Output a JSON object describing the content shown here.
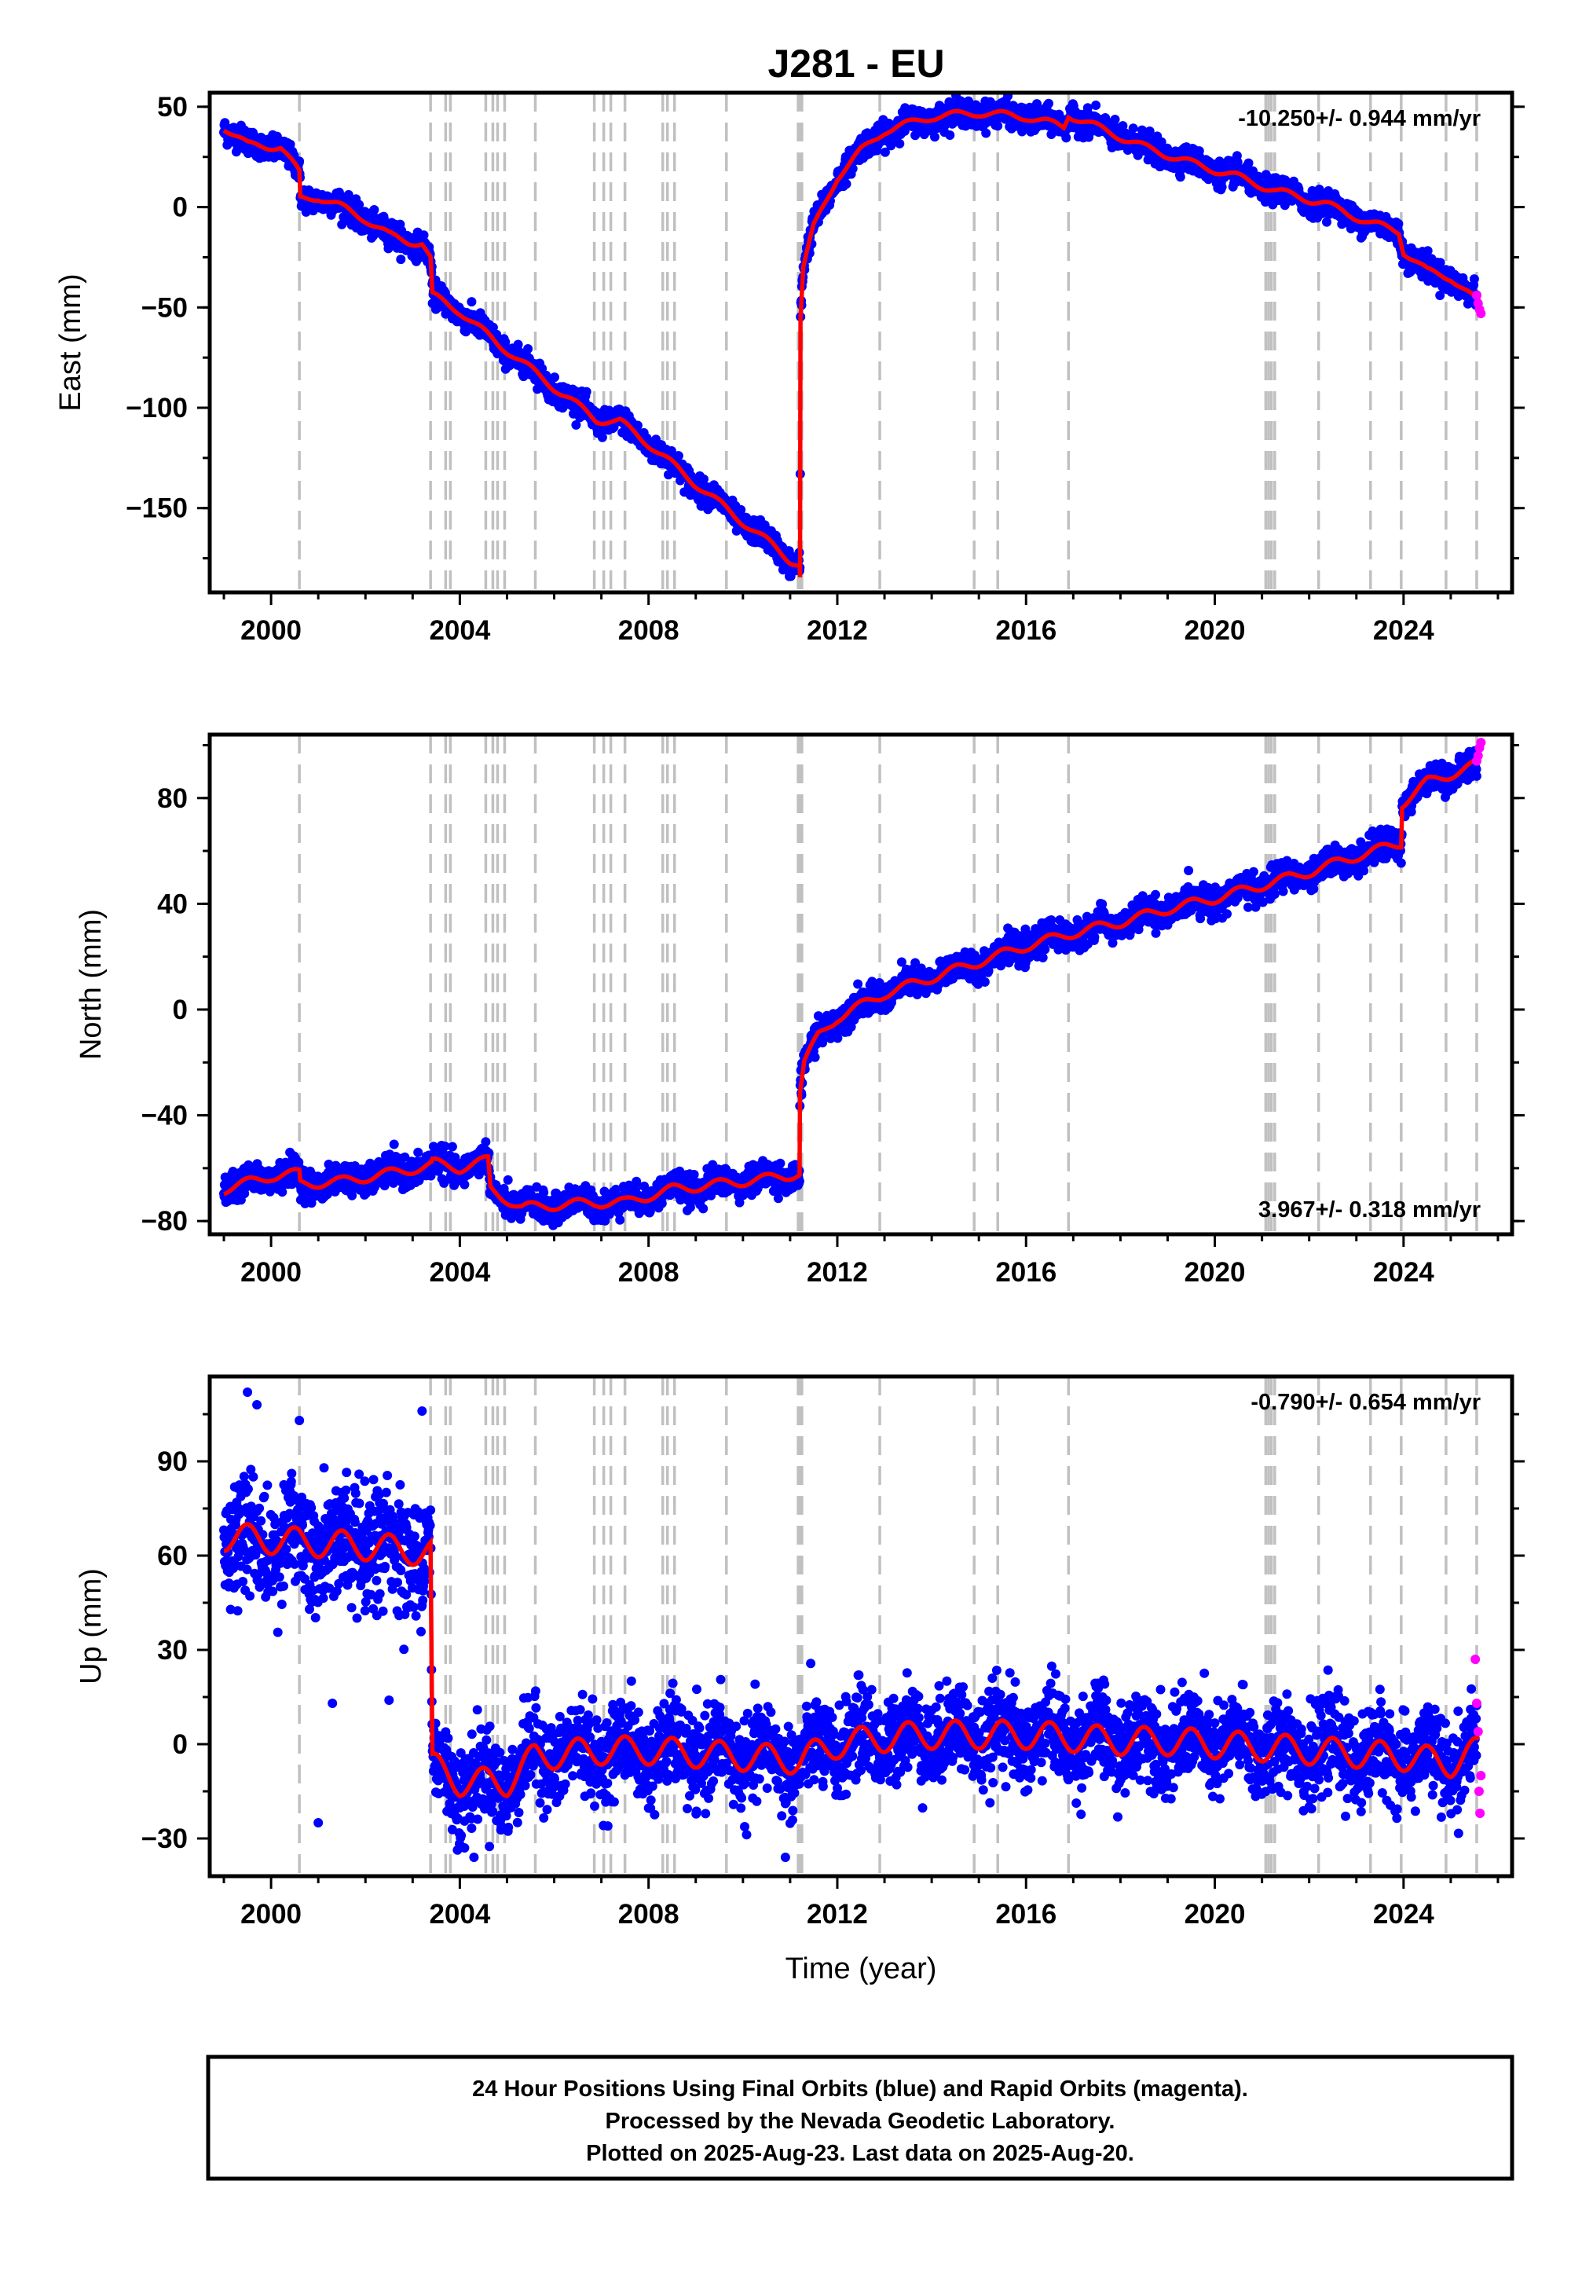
{
  "title": "J281 - EU",
  "colors": {
    "final_orbits": "#0000ff",
    "rapid_orbits": "#ff00ff",
    "model": "#ff0000",
    "event_lines": "#c0c0c0",
    "axes": "#000000"
  },
  "chart_data": [
    {
      "type": "scatter",
      "ylabel": "East (mm)",
      "xlabel": "",
      "xlim": [
        1998.7,
        2026.3
      ],
      "ylim": [
        -192,
        57
      ],
      "xticks": [
        2000,
        2004,
        2008,
        2012,
        2016,
        2020,
        2024
      ],
      "yticks": [
        50,
        0,
        -50,
        -100,
        -150
      ],
      "ytick_labels": [
        "50",
        "0",
        "−50",
        "−100",
        "−150"
      ],
      "rate_label": "-10.250+/- 0.944 mm/yr",
      "rate_position": "top-right",
      "model_knots": [
        [
          1999.0,
          40
        ],
        [
          1999.5,
          31
        ],
        [
          2000.2,
          30
        ],
        [
          2000.6,
          17
        ],
        [
          2000.62,
          4
        ],
        [
          2001.0,
          5
        ],
        [
          2001.5,
          0
        ],
        [
          2002.0,
          -6
        ],
        [
          2002.5,
          -14
        ],
        [
          2002.9,
          -17
        ],
        [
          2003.2,
          -18
        ],
        [
          2003.38,
          -26
        ],
        [
          2003.42,
          -44
        ],
        [
          2004.0,
          -52
        ],
        [
          2004.8,
          -68
        ],
        [
          2005.2,
          -75
        ],
        [
          2006.0,
          -90
        ],
        [
          2006.9,
          -106
        ],
        [
          2007.4,
          -107
        ],
        [
          2008.0,
          -118
        ],
        [
          2009.0,
          -138
        ],
        [
          2010.0,
          -157
        ],
        [
          2010.6,
          -168
        ],
        [
          2011.0,
          -176
        ],
        [
          2011.2,
          -178
        ],
        [
          2011.21,
          -184
        ],
        [
          2011.22,
          -55
        ],
        [
          2011.28,
          -30
        ],
        [
          2011.5,
          -10
        ],
        [
          2012.0,
          15
        ],
        [
          2012.5,
          28
        ],
        [
          2013.0,
          38
        ],
        [
          2014.0,
          45
        ],
        [
          2015.0,
          47
        ],
        [
          2016.0,
          45
        ],
        [
          2016.8,
          40
        ],
        [
          2016.9,
          46
        ],
        [
          2017.5,
          40
        ],
        [
          2018.5,
          30
        ],
        [
          2019.5,
          22
        ],
        [
          2020.5,
          15
        ],
        [
          2021.3,
          8
        ],
        [
          2022.3,
          2
        ],
        [
          2023.3,
          -8
        ],
        [
          2023.9,
          -12
        ],
        [
          2024.0,
          -22
        ],
        [
          2024.5,
          -32
        ],
        [
          2025.0,
          -35
        ],
        [
          2025.6,
          -48
        ]
      ],
      "scatter_sigma": 3,
      "rapid_points": [
        [
          2025.55,
          -44
        ],
        [
          2025.58,
          -48
        ],
        [
          2025.61,
          -51
        ],
        [
          2025.64,
          -53
        ]
      ]
    },
    {
      "type": "scatter",
      "ylabel": "North (mm)",
      "xlabel": "",
      "xlim": [
        1998.7,
        2026.3
      ],
      "ylim": [
        -85,
        104
      ],
      "xticks": [
        2000,
        2004,
        2008,
        2012,
        2016,
        2020,
        2024
      ],
      "yticks": [
        80,
        40,
        0,
        -40,
        -80
      ],
      "ytick_labels": [
        "80",
        "40",
        "0",
        "−40",
        "−80"
      ],
      "rate_label": "3.967+/- 0.318 mm/yr",
      "rate_position": "bottom-right",
      "model_knots": [
        [
          1999.0,
          -68
        ],
        [
          2000.0,
          -63
        ],
        [
          2000.6,
          -62
        ],
        [
          2000.62,
          -66
        ],
        [
          2001.5,
          -65
        ],
        [
          2002.5,
          -62
        ],
        [
          2003.4,
          -59
        ],
        [
          2003.42,
          -58
        ],
        [
          2004.0,
          -60
        ],
        [
          2004.6,
          -57
        ],
        [
          2004.65,
          -68
        ],
        [
          2005.3,
          -75
        ],
        [
          2006.0,
          -74
        ],
        [
          2006.9,
          -73
        ],
        [
          2007.5,
          -73
        ],
        [
          2008.5,
          -68
        ],
        [
          2009.5,
          -66
        ],
        [
          2010.5,
          -64
        ],
        [
          2011.2,
          -62
        ],
        [
          2011.21,
          -31
        ],
        [
          2011.3,
          -20
        ],
        [
          2011.6,
          -10
        ],
        [
          2012.0,
          -3
        ],
        [
          2013.0,
          6
        ],
        [
          2014.0,
          12
        ],
        [
          2015.0,
          18
        ],
        [
          2016.0,
          24
        ],
        [
          2017.0,
          29
        ],
        [
          2018.0,
          33
        ],
        [
          2019.0,
          38
        ],
        [
          2020.0,
          42
        ],
        [
          2021.0,
          47
        ],
        [
          2022.0,
          52
        ],
        [
          2023.0,
          58
        ],
        [
          2023.95,
          63
        ],
        [
          2023.97,
          78
        ],
        [
          2024.5,
          86
        ],
        [
          2025.0,
          89
        ],
        [
          2025.6,
          93
        ]
      ],
      "scatter_sigma": 2.6,
      "rapid_points": [
        [
          2025.55,
          94
        ],
        [
          2025.58,
          96
        ],
        [
          2025.61,
          99
        ],
        [
          2025.64,
          101
        ]
      ]
    },
    {
      "type": "scatter",
      "ylabel": "Up (mm)",
      "xlabel": "Time (year)",
      "xlim": [
        1998.7,
        2026.3
      ],
      "ylim": [
        -42,
        117
      ],
      "xticks": [
        2000,
        2004,
        2008,
        2012,
        2016,
        2020,
        2024
      ],
      "yticks": [
        90,
        60,
        30,
        0,
        -30
      ],
      "ytick_labels": [
        "90",
        "60",
        "30",
        "0",
        "−30"
      ],
      "rate_label": "-0.790+/- 0.654 mm/yr",
      "rate_position": "top-right",
      "model_knots": [
        [
          1999.0,
          66
        ],
        [
          2000.0,
          65
        ],
        [
          2001.0,
          64
        ],
        [
          2002.0,
          63
        ],
        [
          2003.38,
          61
        ],
        [
          2003.42,
          -7
        ],
        [
          2004.0,
          -12
        ],
        [
          2005.0,
          -12
        ],
        [
          2005.6,
          -4
        ],
        [
          2007.0,
          -2
        ],
        [
          2008.0,
          -2
        ],
        [
          2009.0,
          -3
        ],
        [
          2010.0,
          -4
        ],
        [
          2011.2,
          -5
        ],
        [
          2012.0,
          0
        ],
        [
          2013.0,
          2
        ],
        [
          2014.0,
          3
        ],
        [
          2015.0,
          3
        ],
        [
          2016.0,
          3
        ],
        [
          2017.0,
          2
        ],
        [
          2018.0,
          1
        ],
        [
          2019.0,
          1
        ],
        [
          2020.0,
          0
        ],
        [
          2021.0,
          -1
        ],
        [
          2022.0,
          -2
        ],
        [
          2023.0,
          -3
        ],
        [
          2024.0,
          -4
        ],
        [
          2025.0,
          -6
        ],
        [
          2025.6,
          -2
        ]
      ],
      "seasonal_amplitude": 4.5,
      "scatter_sigma": 7,
      "outliers": [
        [
          1999.5,
          112
        ],
        [
          1999.7,
          108
        ],
        [
          2000.6,
          103
        ],
        [
          2003.2,
          106
        ],
        [
          2001.0,
          -25
        ],
        [
          2004.1,
          -33
        ],
        [
          2004.3,
          -36
        ],
        [
          2010.9,
          -36
        ],
        [
          2001.3,
          13
        ],
        [
          2002.5,
          14
        ]
      ],
      "rapid_points": [
        [
          2025.52,
          27
        ],
        [
          2025.55,
          13
        ],
        [
          2025.58,
          4
        ],
        [
          2025.6,
          -15
        ],
        [
          2025.62,
          -22
        ],
        [
          2025.64,
          -10
        ]
      ]
    }
  ],
  "event_lines_x": [
    2000.6,
    2003.38,
    2003.7,
    2003.8,
    2004.55,
    2004.7,
    2004.8,
    2004.95,
    2005.6,
    2006.85,
    2007.05,
    2007.2,
    2007.5,
    2008.3,
    2008.4,
    2008.55,
    2009.65,
    2011.17,
    2011.21,
    2011.25,
    2012.9,
    2014.9,
    2015.4,
    2016.9,
    2021.08,
    2021.14,
    2021.2,
    2021.27,
    2022.2,
    2023.3,
    2023.95,
    2024.9,
    2025.55
  ],
  "footer": {
    "line1": "24 Hour Positions Using Final Orbits (blue) and Rapid Orbits (magenta).",
    "line2": "Processed by the Nevada Geodetic Laboratory.",
    "line3": "Plotted on 2025-Aug-23. Last data on 2025-Aug-20."
  }
}
